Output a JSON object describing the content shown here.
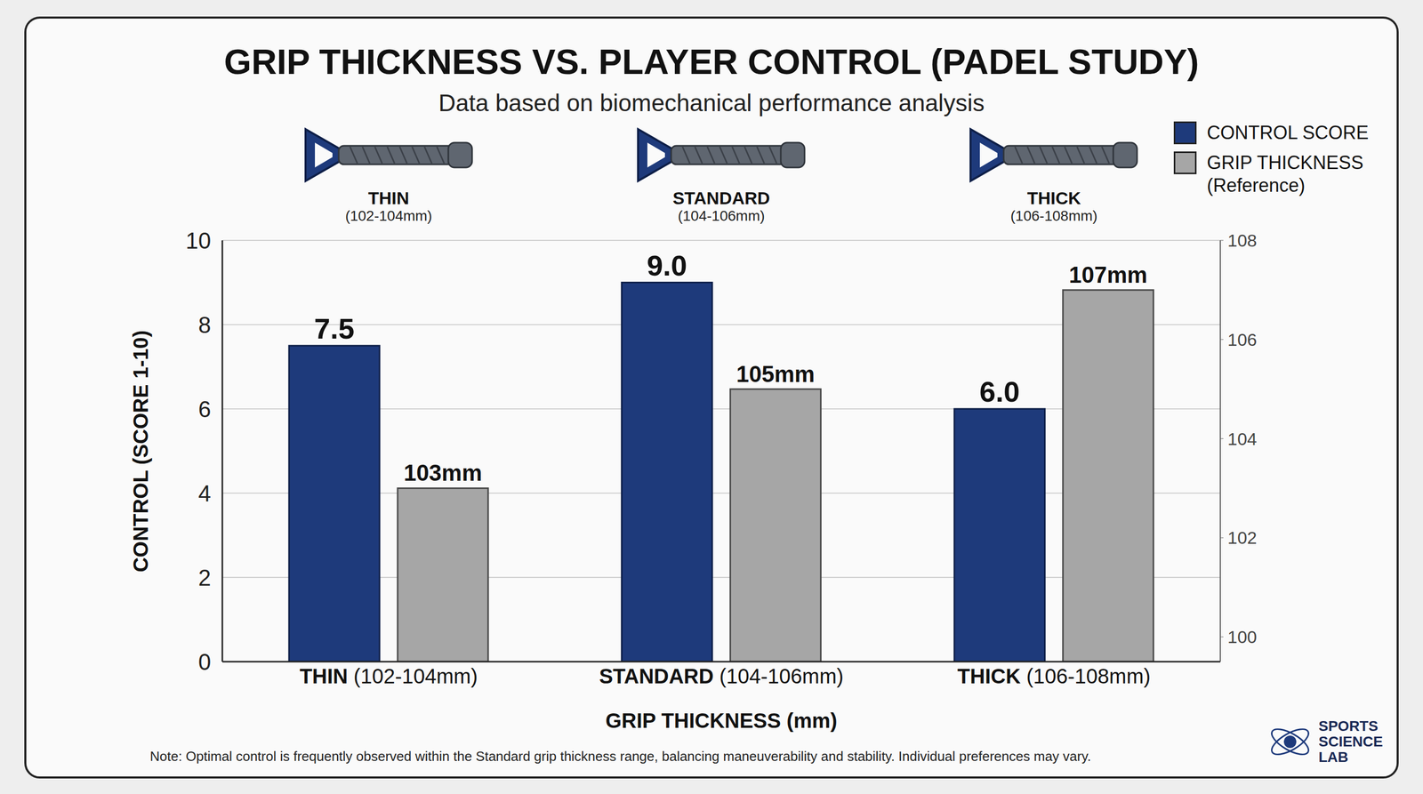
{
  "chart_data": {
    "type": "bar",
    "title": "GRIP THICKNESS VS. PLAYER CONTROL (PADEL STUDY)",
    "subtitle": "Data based on biomechanical performance analysis",
    "x_label": "GRIP THICKNESS (mm)",
    "y_label": "CONTROL (SCORE 1-10)",
    "categories": [
      "THIN (102-104mm)",
      "STANDARD (104-106mm)",
      "THICK (106-108mm)"
    ],
    "series": [
      {
        "name": "CONTROL SCORE",
        "color": "#1e3a7b",
        "values": [
          7.5,
          9.0,
          6.0
        ],
        "value_labels": [
          "7.5",
          "9.0",
          "6.0"
        ]
      },
      {
        "name": "GRIP THICKNESS (Reference)",
        "color": "#a6a6a6",
        "axis": "y2",
        "values": [
          103,
          105,
          107
        ],
        "value_labels": [
          "103mm",
          "105mm",
          "107mm"
        ]
      }
    ],
    "ylim": [
      0,
      10
    ],
    "yticks": [
      0,
      2,
      4,
      6,
      8,
      10
    ],
    "y2lim": [
      99.5,
      108
    ],
    "y2ticks": [
      100,
      102,
      104,
      106,
      108
    ],
    "grid": true,
    "legend": "top right",
    "data_labels": true,
    "note": "Note: Optimal control is frequently observed within the Standard grip thickness range, balancing maneuverability and stability. Individual preferences may vary.",
    "logo": "SPORTS SCIENCE LAB"
  }
}
